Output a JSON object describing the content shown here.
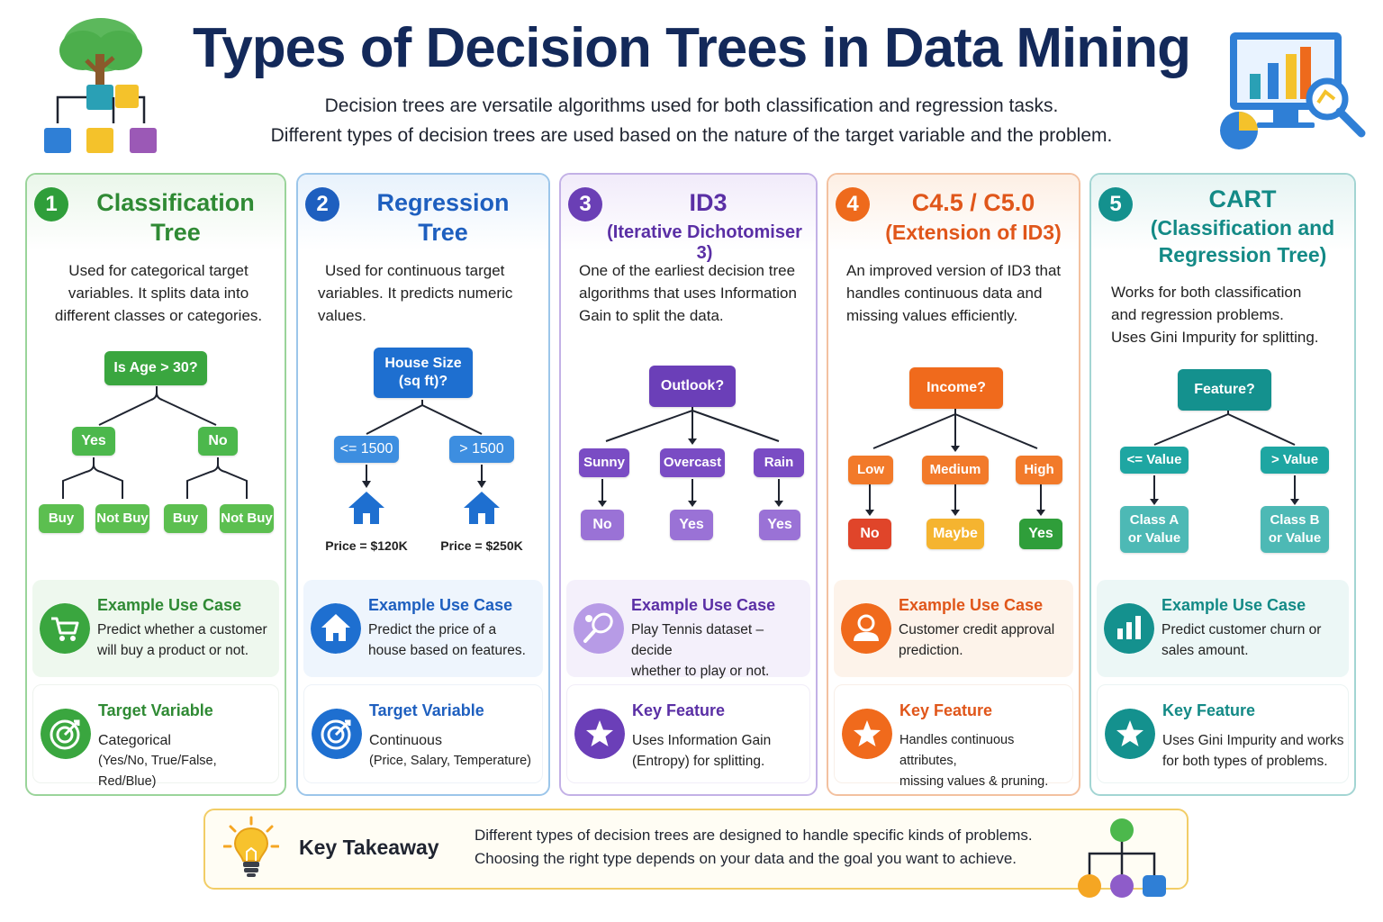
{
  "header": {
    "title": "Types of Decision Trees in Data Mining",
    "subtitle_1": "Decision trees are versatile algorithms used for both classification and regression tasks.",
    "subtitle_2": "Different types of decision trees are used based on the nature of the target variable and the problem."
  },
  "colors": {
    "green": "#2f9e3a",
    "blue": "#1e5fbf",
    "purple": "#6a3fb5",
    "orange": "#ee6a1c",
    "teal": "#14918e",
    "navy": "#13295a"
  },
  "cards": [
    {
      "number": "1",
      "title_1": "Classification",
      "title_2": "Tree",
      "desc_1": "Used for categorical target",
      "desc_2": "variables. It splits data into",
      "desc_3": "different classes or categories.",
      "tree": {
        "root": "Is Age > 30?",
        "branches": [
          "Yes",
          "No"
        ],
        "leaves": [
          "Buy",
          "Not Buy",
          "Buy",
          "Not Buy"
        ]
      },
      "example": {
        "heading": "Example Use Case",
        "line_1": "Predict whether a customer",
        "line_2": "will buy a product or not.",
        "icon": "shopping-cart-icon"
      },
      "info2": {
        "heading": "Target Variable",
        "line_1": "Categorical",
        "line_2": "(Yes/No, True/False, Red/Blue)",
        "icon": "target-icon"
      }
    },
    {
      "number": "2",
      "title_1": "Regression",
      "title_2": "Tree",
      "desc_1": "Used for continuous target",
      "desc_2": "variables. It predicts numeric",
      "desc_3": "values.",
      "tree": {
        "root_1": "House Size",
        "root_2": "(sq ft)?",
        "branches": [
          "<= 1500",
          "> 1500"
        ],
        "leaves": [
          "Price = $120K",
          "Price = $250K"
        ]
      },
      "example": {
        "heading": "Example Use Case",
        "line_1": "Predict the price of a",
        "line_2": "house based on features.",
        "icon": "house-icon"
      },
      "info2": {
        "heading": "Target Variable",
        "line_1": "Continuous",
        "line_2": "(Price, Salary, Temperature)",
        "icon": "target-icon"
      }
    },
    {
      "number": "3",
      "title_1": "ID3",
      "title_2": "(Iterative Dichotomiser 3)",
      "desc_1": "One of the earliest decision tree",
      "desc_2": "algorithms that uses Information",
      "desc_3": "Gain to split the data.",
      "tree": {
        "root": "Outlook?",
        "branches": [
          "Sunny",
          "Overcast",
          "Rain"
        ],
        "leaves": [
          "No",
          "Yes",
          "Yes"
        ]
      },
      "example": {
        "heading": "Example Use Case",
        "line_1": "Play Tennis dataset – decide",
        "line_2": "whether to play or not.",
        "icon": "tennis-racket-icon"
      },
      "info2": {
        "heading": "Key Feature",
        "line_1": "Uses Information Gain",
        "line_2": "(Entropy) for splitting.",
        "icon": "star-icon"
      }
    },
    {
      "number": "4",
      "title_1": "C4.5 / C5.0",
      "title_2": "(Extension of ID3)",
      "desc_1": "An improved version of ID3 that",
      "desc_2": "handles continuous data and",
      "desc_3": "missing values efficiently.",
      "tree": {
        "root": "Income?",
        "branches": [
          "Low",
          "Medium",
          "High"
        ],
        "leaves": [
          "No",
          "Maybe",
          "Yes"
        ]
      },
      "example": {
        "heading": "Example Use Case",
        "line_1": "Customer credit approval",
        "line_2": "prediction.",
        "icon": "user-icon"
      },
      "info2": {
        "heading": "Key Feature",
        "line_1": "Handles continuous attributes,",
        "line_2": "missing values & pruning.",
        "icon": "star-icon"
      }
    },
    {
      "number": "5",
      "title_1": "CART",
      "title_2": "(Classification and",
      "title_3": "Regression Tree)",
      "desc_1": "Works for both classification",
      "desc_2": "and regression problems.",
      "desc_3": "Uses Gini Impurity for splitting.",
      "tree": {
        "root": "Feature?",
        "branches": [
          "<= Value",
          "> Value"
        ],
        "leaves_1": [
          "Class A",
          "Class B"
        ],
        "leaves_2": [
          "or Value",
          "or Value"
        ]
      },
      "example": {
        "heading": "Example Use Case",
        "line_1": "Predict customer churn or",
        "line_2": "sales amount.",
        "icon": "bar-chart-icon"
      },
      "info2": {
        "heading": "Key Feature",
        "line_1": "Uses Gini Impurity and works",
        "line_2": "for both types of problems.",
        "icon": "star-icon"
      }
    }
  ],
  "takeaway": {
    "heading": "Key Takeaway",
    "line_1": "Different types of decision trees are designed to handle specific kinds of problems.",
    "line_2": "Choosing the right type depends on your data and the goal you want to achieve.",
    "icon": "lightbulb-icon"
  }
}
